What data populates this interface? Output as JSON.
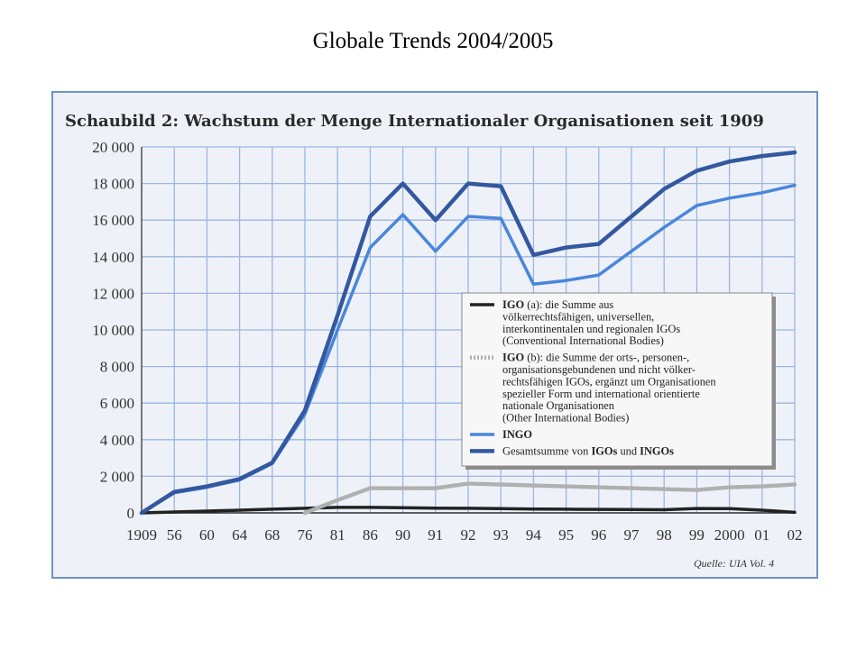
{
  "slide_title": "Globale Trends 2004/2005",
  "chart_data": {
    "type": "line",
    "title": "Schaubild 2: Wachstum der Menge Internationaler Organisationen seit 1909",
    "categories": [
      "1909",
      "56",
      "60",
      "64",
      "68",
      "76",
      "81",
      "86",
      "90",
      "91",
      "92",
      "93",
      "94",
      "95",
      "96",
      "97",
      "98",
      "99",
      "2000",
      "01",
      "02"
    ],
    "ylim": [
      0,
      20000
    ],
    "yticks": [
      0,
      2000,
      4000,
      6000,
      8000,
      10000,
      12000,
      14000,
      16000,
      18000,
      20000
    ],
    "ytick_labels": [
      "0",
      "2 000",
      "4 000",
      "6 000",
      "8 000",
      "10 000",
      "12 000",
      "14 000",
      "16 000",
      "18 000",
      "20 000"
    ],
    "grid": true,
    "legend_position": "right",
    "series": [
      {
        "id": "igo_a",
        "name": "IGO (a)",
        "legend_lines": [
          [
            {
              "b": "IGO"
            },
            {
              "t": " (a): die Summe aus"
            }
          ],
          [
            {
              "t": "völkerrechtsfähigen, universellen,"
            }
          ],
          [
            {
              "t": "interkontinentalen und regionalen IGOs"
            }
          ],
          [
            {
              "t": "(Conventional International Bodies)"
            }
          ]
        ],
        "color": "#222222",
        "values": [
          0,
          50,
          100,
          150,
          200,
          250,
          300,
          300,
          280,
          260,
          250,
          230,
          210,
          200,
          190,
          180,
          170,
          240,
          230,
          150,
          30
        ]
      },
      {
        "id": "igo_b",
        "name": "IGO (b)",
        "legend_lines": [
          [
            {
              "b": "IGO"
            },
            {
              "t": " (b): die Summe der orts-, personen-,"
            }
          ],
          [
            {
              "t": "organisationsgebundenen und nicht völker-"
            }
          ],
          [
            {
              "t": "rechtsfähigen IGOs, ergänzt um Organisationen"
            }
          ],
          [
            {
              "t": "spezieller Form und international orientierte"
            }
          ],
          [
            {
              "t": "nationale Organisationen"
            }
          ],
          [
            {
              "t": "(Other International Bodies)"
            }
          ]
        ],
        "color": "#b0b0b0",
        "values": [
          null,
          null,
          null,
          null,
          null,
          0,
          700,
          1350,
          1350,
          1350,
          1600,
          1550,
          1500,
          1450,
          1400,
          1350,
          1300,
          1250,
          1400,
          1450,
          1550
        ]
      },
      {
        "id": "ingo",
        "name": "INGO",
        "legend_lines": [
          [
            {
              "b": "INGO"
            }
          ]
        ],
        "color": "#4a86dc",
        "values": [
          0,
          1100,
          1400,
          1800,
          2700,
          5400,
          10000,
          14500,
          16300,
          14300,
          16200,
          16100,
          12500,
          12700,
          13000,
          14300,
          15600,
          16800,
          17200,
          17500,
          17900
        ]
      },
      {
        "id": "total",
        "name": "Gesamtsumme",
        "legend_lines": [
          [
            {
              "t": "Gesamtsumme von "
            },
            {
              "b": "IGOs"
            },
            {
              "t": " und "
            },
            {
              "b": "INGOs"
            }
          ]
        ],
        "color": "#3358a0",
        "values": [
          0,
          1150,
          1450,
          1850,
          2750,
          5600,
          10800,
          16200,
          18000,
          16000,
          18000,
          17850,
          14100,
          14500,
          14700,
          16200,
          17700,
          18700,
          19200,
          19500,
          19700
        ]
      }
    ],
    "source": "Quelle: UIA Vol. 4"
  }
}
